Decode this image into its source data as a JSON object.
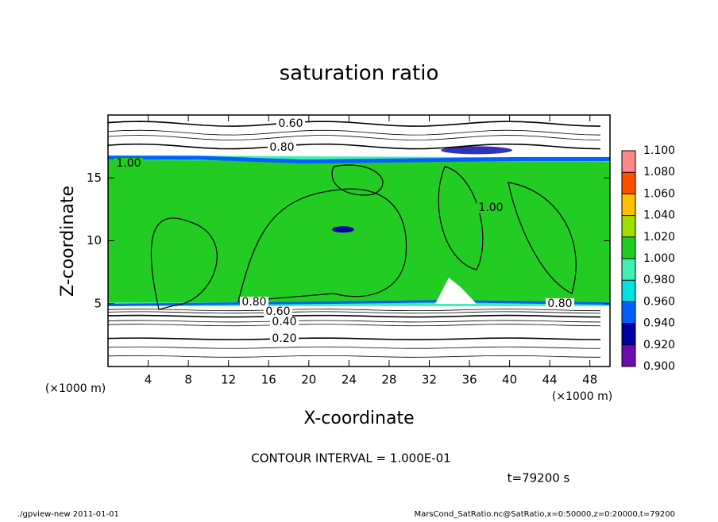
{
  "chart_data": {
    "type": "contour",
    "title": "saturation ratio",
    "xlabel": "X-coordinate",
    "ylabel": "Z-coordinate",
    "x_unit_label": "(×1000 m)",
    "y_unit_label": "(×1000 m)",
    "xlim": [
      0,
      50
    ],
    "xticks": [
      4,
      8,
      12,
      16,
      20,
      24,
      28,
      32,
      36,
      40,
      44,
      48
    ],
    "ylim": [
      0,
      20
    ],
    "yticks": [
      5,
      10,
      15
    ],
    "colorbar": {
      "ticks": [
        {
          "value": 0.9,
          "label": "0.900"
        },
        {
          "value": 0.92,
          "label": "0.920"
        },
        {
          "value": 0.94,
          "label": "0.940"
        },
        {
          "value": 0.96,
          "label": "0.960"
        },
        {
          "value": 0.98,
          "label": "0.980"
        },
        {
          "value": 1.0,
          "label": "1.000"
        },
        {
          "value": 1.02,
          "label": "1.020"
        },
        {
          "value": 1.04,
          "label": "1.040"
        },
        {
          "value": 1.06,
          "label": "1.060"
        },
        {
          "value": 1.08,
          "label": "1.080"
        },
        {
          "value": 1.1,
          "label": "1.100"
        }
      ],
      "colors": [
        "#6a0dad",
        "#0000a8",
        "#0060ff",
        "#00e0e0",
        "#40f0b0",
        "#22cc22",
        "#a0e000",
        "#ffc000",
        "#ff5000",
        "#ff8888"
      ]
    },
    "contour_labels": [
      {
        "value": 0.6,
        "label": "0.60"
      },
      {
        "value": 0.8,
        "label": "0.80"
      },
      {
        "value": 1.0,
        "label": "1.00"
      },
      {
        "value": 0.8,
        "label": "0.80"
      },
      {
        "value": 0.6,
        "label": "0.60"
      },
      {
        "value": 0.4,
        "label": "0.40"
      },
      {
        "value": 0.2,
        "label": "0.20"
      },
      {
        "value": 1.0,
        "label": "1.00"
      },
      {
        "value": 0.8,
        "label": "0.80"
      }
    ],
    "contour_interval_text": "CONTOUR INTERVAL = 1.000E-01",
    "time_text": "t=79200 s",
    "footer_left": "./gpview-new  2011-01-01",
    "footer_right": "MarsCond_SatRatio.nc@SatRatio,x=0:50000,z=0:20000,t=79200"
  }
}
